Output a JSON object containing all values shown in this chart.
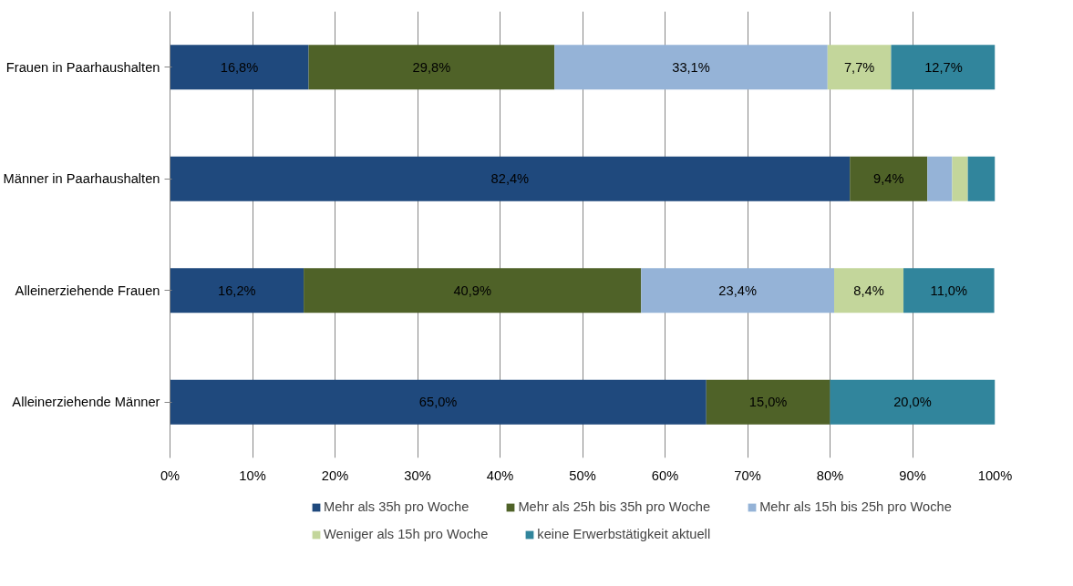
{
  "chart_data": {
    "type": "bar",
    "orientation": "horizontal",
    "stacked": true,
    "categories": [
      "Frauen in Paarhaushalten",
      "Männer in Paarhaushalten",
      "Alleinerziehende Frauen",
      "Alleinerziehende Männer"
    ],
    "series": [
      {
        "name": "Mehr als 35h pro Woche",
        "color": "#1f497d",
        "values": [
          16.8,
          82.4,
          16.2,
          65.0
        ],
        "value_labels": [
          "16,8%",
          "82,4%",
          "16,2%",
          "65,0%"
        ]
      },
      {
        "name": "Mehr als 25h bis 35h pro Woche",
        "color": "#4f6228",
        "values": [
          29.8,
          9.4,
          40.9,
          15.0
        ],
        "value_labels": [
          "29,8%",
          "9,4%",
          "40,9%",
          "15,0%"
        ]
      },
      {
        "name": "Mehr als 15h bis 25h pro Woche",
        "color": "#95b3d7",
        "values": [
          33.1,
          3.0,
          23.4,
          0
        ],
        "value_labels": [
          "33,1%",
          null,
          "23,4%",
          null
        ]
      },
      {
        "name": "Weniger als 15h pro Woche",
        "color": "#c3d69b",
        "values": [
          7.7,
          1.9,
          8.4,
          0
        ],
        "value_labels": [
          "7,7%",
          null,
          "8,4%",
          null
        ]
      },
      {
        "name": "keine Erwerbstätigkeit aktuell",
        "color": "#31859c",
        "values": [
          12.7,
          3.3,
          11.0,
          20.0
        ],
        "value_labels": [
          "12,7%",
          null,
          "11,0%",
          "20,0%"
        ]
      }
    ],
    "xlim": [
      0,
      100
    ],
    "xticks": [
      {
        "value": 0,
        "label": "0%"
      },
      {
        "value": 10,
        "label": "10%"
      },
      {
        "value": 20,
        "label": "20%"
      },
      {
        "value": 30,
        "label": "30%"
      },
      {
        "value": 40,
        "label": "40%"
      },
      {
        "value": 50,
        "label": "50%"
      },
      {
        "value": 60,
        "label": "60%"
      },
      {
        "value": 70,
        "label": "70%"
      },
      {
        "value": 80,
        "label": "80%"
      },
      {
        "value": 90,
        "label": "90%"
      },
      {
        "value": 100,
        "label": "100%"
      }
    ],
    "grid": "x",
    "legend": "bottom"
  }
}
